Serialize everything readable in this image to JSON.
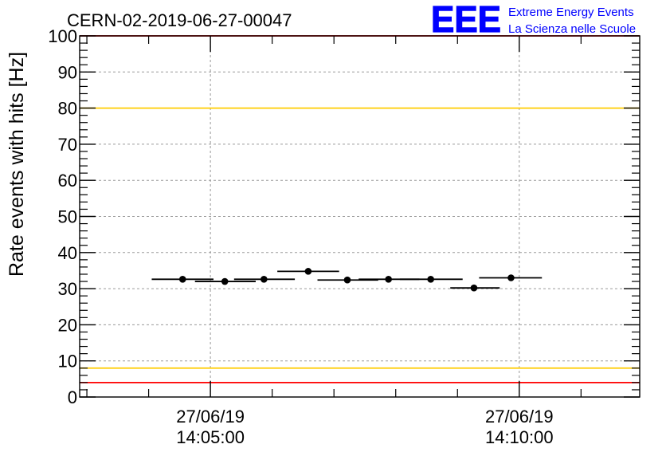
{
  "chart_data": {
    "type": "scatter",
    "title": "CERN-02-2019-06-27-00047",
    "ylabel": "Rate events with hits [Hz]",
    "xlabel": "",
    "ylim": [
      0,
      100
    ],
    "y_ticks": [
      "0",
      "10",
      "20",
      "30",
      "40",
      "50",
      "60",
      "70",
      "80",
      "90",
      "100"
    ],
    "x_labeled_ticks": [
      {
        "time": "14:05:00",
        "date_label": "27/06/19",
        "time_label": "14:05:00"
      },
      {
        "time": "14:10:00",
        "date_label": "27/06/19",
        "time_label": "14:10:00"
      }
    ],
    "grid": true,
    "series": [
      {
        "marker_color": "#000000",
        "points": [
          {
            "x": "14:04:33",
            "y": 32.6,
            "bin_start": "14:04:03",
            "bin_end": "14:05:03"
          },
          {
            "x": "14:05:14",
            "y": 32.0,
            "bin_start": "14:04:45",
            "bin_end": "14:05:44"
          },
          {
            "x": "14:05:52",
            "y": 32.6,
            "bin_start": "14:05:23",
            "bin_end": "14:06:22"
          },
          {
            "x": "14:06:35",
            "y": 34.8,
            "bin_start": "14:06:05",
            "bin_end": "14:07:05"
          },
          {
            "x": "14:07:13",
            "y": 32.4,
            "bin_start": "14:06:44",
            "bin_end": "14:07:43"
          },
          {
            "x": "14:07:53",
            "y": 32.6,
            "bin_start": "14:07:24",
            "bin_end": "14:08:23"
          },
          {
            "x": "14:08:34",
            "y": 32.6,
            "bin_start": "14:08:04",
            "bin_end": "14:09:05"
          },
          {
            "x": "14:09:16",
            "y": 30.2,
            "bin_start": "14:08:53",
            "bin_end": "14:09:41"
          },
          {
            "x": "14:09:52",
            "y": 33.0,
            "bin_start": "14:09:21",
            "bin_end": "14:10:22"
          }
        ]
      }
    ],
    "reference_lines": [
      {
        "y": 100,
        "color": "#ff0000"
      },
      {
        "y": 80,
        "color": "#ffcc00"
      },
      {
        "y": 8,
        "color": "#ffcc00"
      },
      {
        "y": 4,
        "color": "#ff0000"
      }
    ]
  },
  "logo": {
    "text": "EEE",
    "line1": "Extreme Energy Events",
    "line2": "La Scienza nelle Scuole",
    "color": "#0000ff"
  }
}
